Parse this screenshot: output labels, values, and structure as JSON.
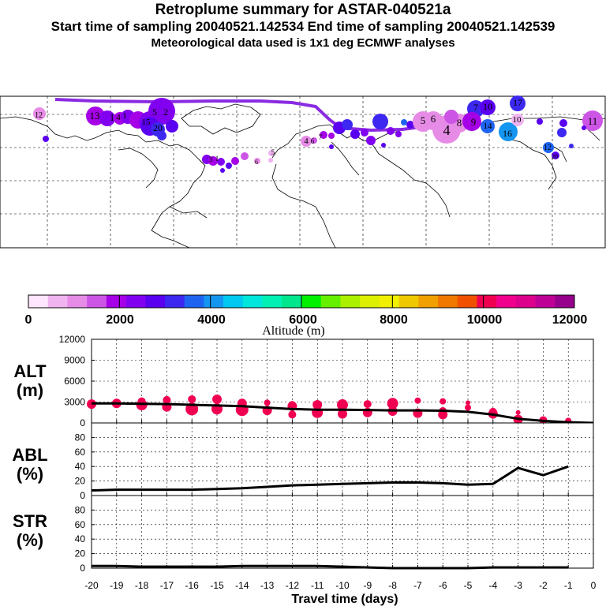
{
  "header": {
    "title": "Retroplume summary for ASTAR-040521a",
    "subtitle": "Start time of sampling 20040521.142534     End time of sampling 20040521.142539",
    "met_line": "Meteorological data used is 1x1 deg ECMWF analyses"
  },
  "colorbar": {
    "label": "Altitude (m)",
    "ticks": [
      "0",
      "2000",
      "4000",
      "6000",
      "8000",
      "10000",
      "12000"
    ],
    "colors": [
      "#ffe6ff",
      "#f0b4f0",
      "#e68ce6",
      "#cc55e6",
      "#a500e6",
      "#8200f0",
      "#5a00f0",
      "#3c28f0",
      "#1e64f0",
      "#1496f0",
      "#00c8f0",
      "#00e6dc",
      "#00f0b4",
      "#00e68c",
      "#00f000",
      "#64f000",
      "#aaf000",
      "#dcf000",
      "#f0f000",
      "#f0c800",
      "#f0a000",
      "#f07800",
      "#f05000",
      "#f00050",
      "#f0008c",
      "#dc008c",
      "#be0096",
      "#96008c"
    ]
  },
  "map": {
    "labels": [
      "12",
      "13",
      "1",
      "4",
      "1",
      "5",
      "2",
      "15",
      "20",
      "3",
      "1",
      "6",
      "5",
      "6",
      "4",
      "8",
      "7",
      "10",
      "9",
      "14",
      "16",
      "10",
      "11",
      "17",
      "12",
      "20",
      "4",
      "5",
      "6",
      "7"
    ]
  },
  "chart_data": [
    {
      "type": "line",
      "name": "ALT",
      "title": "ALT",
      "unit": "(m)",
      "xlabel": "Travel time (days)",
      "x": [
        -20,
        -19,
        -18,
        -17,
        -16,
        -15,
        -14,
        -13,
        -12,
        -11,
        -10,
        -9,
        -8,
        -7,
        -6,
        -5,
        -4,
        -3,
        -2,
        -1,
        0
      ],
      "xticks": [
        "-20",
        "-19",
        "-18",
        "-17",
        "-16",
        "-15",
        "-14",
        "-13",
        "-12",
        "-11",
        "-10",
        "-9",
        "-8",
        "-7",
        "-6",
        "-5",
        "-4",
        "-3",
        "-2",
        "-1",
        "0"
      ],
      "ylim": [
        0,
        12000
      ],
      "yticks": [
        "0",
        "3000",
        "6000",
        "9000",
        "12000"
      ],
      "series": [
        {
          "name": "median altitude",
          "values": [
            2800,
            2800,
            2750,
            2700,
            2600,
            2500,
            2400,
            2200,
            2000,
            1900,
            1900,
            1850,
            1800,
            1800,
            1750,
            1600,
            1200,
            600,
            300,
            100,
            0
          ]
        }
      ],
      "scatter_points": [
        [
          -20,
          2700,
          6
        ],
        [
          -19,
          2800,
          6
        ],
        [
          -18,
          2600,
          7
        ],
        [
          -18,
          3100,
          5
        ],
        [
          -17,
          2300,
          6
        ],
        [
          -17,
          3300,
          5
        ],
        [
          -16,
          2000,
          8
        ],
        [
          -16,
          3400,
          5
        ],
        [
          -15,
          2000,
          7
        ],
        [
          -15,
          3400,
          6
        ],
        [
          -14,
          1900,
          8
        ],
        [
          -14,
          2800,
          6
        ],
        [
          -13,
          1800,
          6
        ],
        [
          -13,
          2900,
          4
        ],
        [
          -12,
          1200,
          5
        ],
        [
          -12,
          2400,
          6
        ],
        [
          -12,
          2700,
          4
        ],
        [
          -11,
          1500,
          7
        ],
        [
          -11,
          2600,
          6
        ],
        [
          -10,
          1300,
          6
        ],
        [
          -10,
          2600,
          7
        ],
        [
          -9,
          1500,
          6
        ],
        [
          -9,
          2700,
          5
        ],
        [
          -8,
          1700,
          6
        ],
        [
          -8,
          2800,
          7
        ],
        [
          -7,
          1400,
          6
        ],
        [
          -7,
          3200,
          4
        ],
        [
          -6,
          1200,
          6
        ],
        [
          -6,
          1700,
          5
        ],
        [
          -6,
          3100,
          4
        ],
        [
          -5,
          2200,
          4
        ],
        [
          -5,
          2900,
          3
        ],
        [
          -4,
          1300,
          6
        ],
        [
          -4,
          1600,
          5
        ],
        [
          -3,
          500,
          6
        ],
        [
          -3,
          1500,
          3
        ],
        [
          -2,
          400,
          5
        ],
        [
          -1,
          300,
          4
        ]
      ]
    },
    {
      "type": "line",
      "name": "ABL",
      "title": "ABL",
      "unit": "(%)",
      "ylim": [
        0,
        100
      ],
      "yticks": [
        "0",
        "20",
        "40",
        "60",
        "80"
      ],
      "x": [
        -20,
        -19,
        -18,
        -17,
        -16,
        -15,
        -14,
        -13,
        -12,
        -11,
        -10,
        -9,
        -8,
        -7,
        -6,
        -5,
        -4,
        -3,
        -2,
        -1
      ],
      "series": [
        {
          "name": "ABL fraction",
          "values": [
            7,
            8,
            8,
            8,
            8,
            9,
            10,
            12,
            14,
            15,
            16,
            17,
            18,
            18,
            17,
            15,
            16,
            38,
            28,
            40
          ]
        }
      ]
    },
    {
      "type": "line",
      "name": "STR",
      "title": "STR",
      "unit": "(%)",
      "ylim": [
        0,
        100
      ],
      "yticks": [
        "0",
        "20",
        "40",
        "60",
        "80"
      ],
      "x": [
        -20,
        -19,
        -18,
        -17,
        -16,
        -15,
        -14,
        -13,
        -12,
        -11,
        -10,
        -9,
        -8,
        -7,
        -6,
        -5,
        -4,
        -3,
        -2,
        -1
      ],
      "series": [
        {
          "name": "STR fraction",
          "values": [
            3,
            3,
            2,
            2,
            2,
            2,
            3,
            3,
            3,
            3,
            2,
            1,
            0,
            0,
            0,
            0,
            1,
            1,
            1,
            1
          ]
        }
      ]
    }
  ]
}
